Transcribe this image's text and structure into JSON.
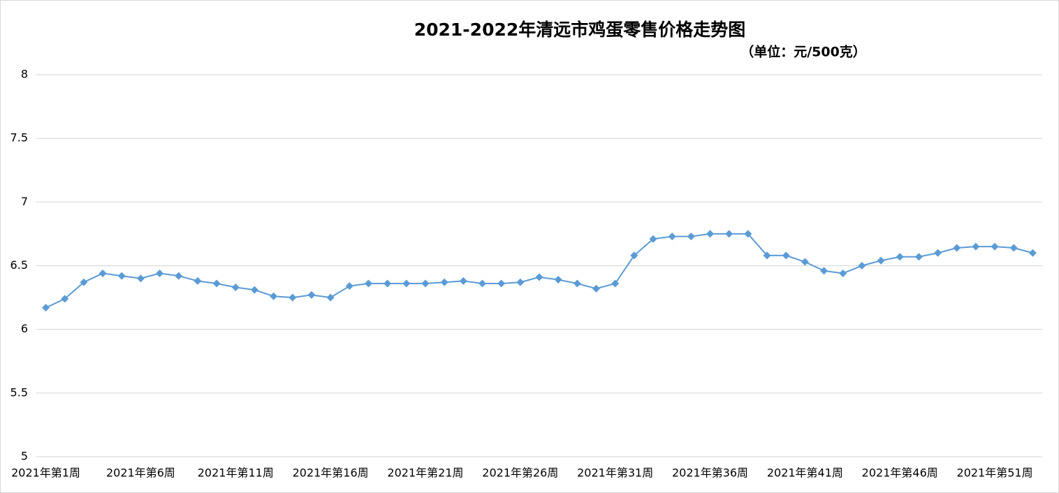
{
  "chart_data": {
    "type": "line",
    "title": "2021-2022年清远市鸡蛋零售价格走势图",
    "subtitle": "（单位：元/500克）",
    "categories": [
      "2021年第1周",
      null,
      null,
      null,
      null,
      "2021年第6周",
      null,
      null,
      null,
      null,
      "2021年第11周",
      null,
      null,
      null,
      null,
      "2021年第16周",
      null,
      null,
      null,
      null,
      "2021年第21周",
      null,
      null,
      null,
      null,
      "2021年第26周",
      null,
      null,
      null,
      null,
      "2021年第31周",
      null,
      null,
      null,
      null,
      "2021年第36周",
      null,
      null,
      null,
      null,
      "2021年第41周",
      null,
      null,
      null,
      null,
      "2021年第46周",
      null,
      null,
      null,
      null,
      "2021年第51周",
      null,
      null
    ],
    "series": [
      {
        "color": "#5b9bd5",
        "values": [
          6.17,
          6.24,
          6.37,
          6.44,
          6.42,
          6.4,
          6.44,
          6.42,
          6.38,
          6.36,
          6.33,
          6.31,
          6.26,
          6.25,
          6.27,
          6.25,
          6.34,
          6.36,
          6.36,
          6.36,
          6.36,
          6.37,
          6.38,
          6.36,
          6.36,
          6.37,
          6.41,
          6.39,
          6.36,
          6.32,
          6.36,
          6.58,
          6.71,
          6.73,
          6.73,
          6.75,
          6.75,
          6.75,
          6.58,
          6.58,
          6.53,
          6.46,
          6.44,
          6.5,
          6.54,
          6.57,
          6.57,
          6.6,
          6.64,
          6.65,
          6.65,
          6.64,
          6.6
        ]
      }
    ],
    "ylim": [
      5,
      8
    ],
    "yticks": [
      5,
      5.5,
      6,
      6.5,
      7,
      7.5,
      8
    ],
    "grid": true
  }
}
